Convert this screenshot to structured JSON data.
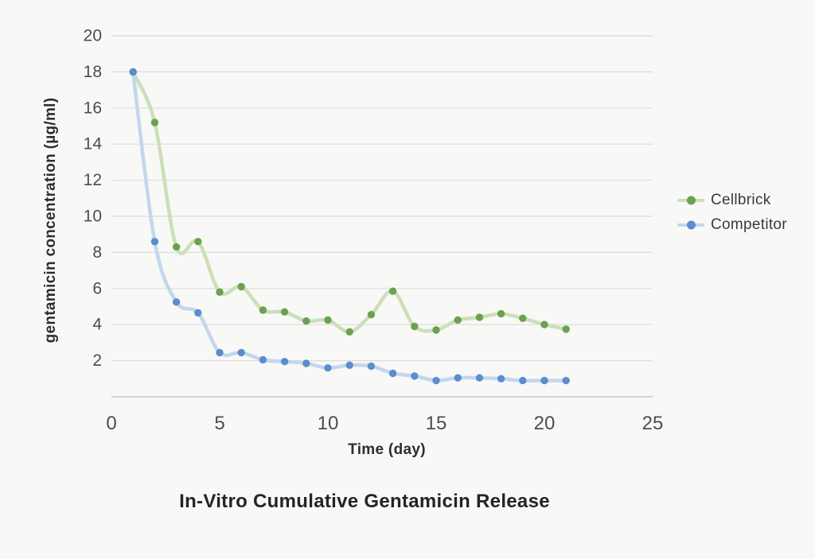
{
  "figure": {
    "background_color": "#f8f8f6"
  },
  "chart_data": {
    "type": "line",
    "title": "In-Vitro Cumulative Gentamicin Release",
    "xlabel": "Time (day)",
    "ylabel": "gentamicin concentration (µg/ml)",
    "x": [
      1,
      2,
      3,
      4,
      5,
      6,
      7,
      8,
      9,
      10,
      11,
      12,
      13,
      14,
      15,
      16,
      17,
      18,
      19,
      20,
      21
    ],
    "series": [
      {
        "name": "Cellbrick",
        "dot_color": "#6ba151",
        "line_color": "#cbdfb9",
        "values": [
          18,
          15.2,
          8.3,
          8.6,
          5.8,
          6.1,
          4.8,
          4.7,
          4.2,
          4.25,
          3.6,
          4.55,
          5.85,
          3.9,
          3.7,
          4.25,
          4.4,
          4.6,
          4.35,
          4.0,
          3.75
        ]
      },
      {
        "name": "Competitor",
        "dot_color": "#5b8dce",
        "line_color": "#c3d6ec",
        "values": [
          18,
          8.6,
          5.25,
          4.65,
          2.45,
          2.45,
          2.05,
          1.95,
          1.85,
          1.6,
          1.75,
          1.7,
          1.3,
          1.15,
          0.9,
          1.05,
          1.05,
          1.0,
          0.9,
          0.9,
          0.9
        ]
      }
    ],
    "xticks": [
      0,
      5,
      10,
      15,
      20,
      25
    ],
    "yticks": [
      2,
      4,
      6,
      8,
      10,
      12,
      14,
      16,
      18,
      20
    ],
    "xlim": [
      0,
      25
    ],
    "ylim": [
      0,
      20
    ],
    "grid": "horizontal",
    "legend_position": "right",
    "grid_color": "#dcdcdc",
    "axis_line_color": "#c6c6c6",
    "tick_label_color": "#4d4d4d"
  }
}
